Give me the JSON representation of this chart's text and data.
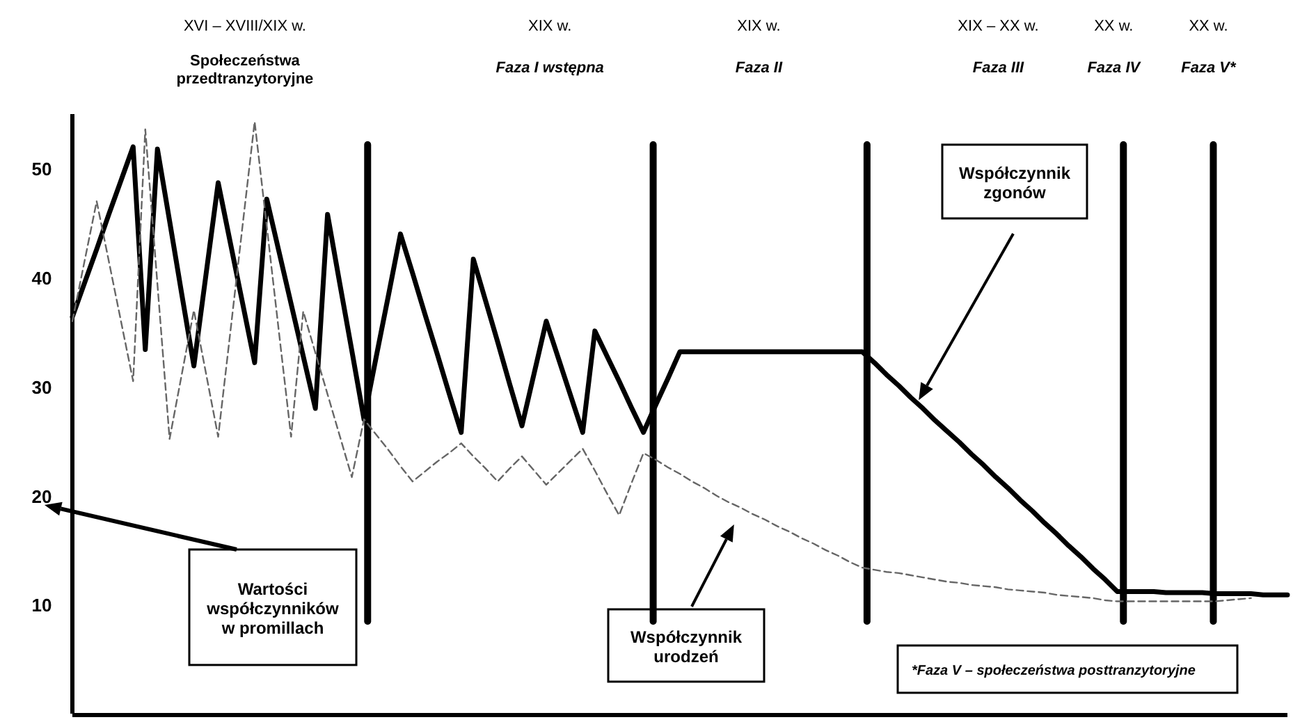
{
  "chart_data": {
    "type": "line",
    "ylim": [
      0,
      55
    ],
    "yticks": [
      10,
      20,
      30,
      40,
      50
    ],
    "tick_labels": "y",
    "marker": "none",
    "categories": [
      null,
      null,
      null,
      null,
      null,
      null,
      null,
      null,
      null,
      null,
      null,
      null,
      null,
      null,
      null,
      null,
      null,
      null,
      null,
      null,
      null,
      null,
      null,
      null,
      null,
      null,
      null,
      null,
      null,
      null,
      null,
      null,
      null,
      null,
      null,
      null,
      null,
      null,
      null,
      null,
      null,
      null,
      null,
      null,
      null,
      null,
      null,
      null,
      null,
      null,
      null,
      null,
      null,
      null,
      null,
      null,
      null,
      null,
      null,
      null,
      null,
      null,
      null,
      null,
      null,
      null,
      null,
      null,
      null,
      null,
      null,
      null,
      null,
      null,
      null,
      null,
      null,
      null,
      null,
      null,
      null,
      null,
      null,
      null,
      null,
      null,
      null,
      null,
      null,
      null,
      null,
      null,
      null,
      null,
      null,
      null,
      null,
      null,
      null,
      null,
      null
    ],
    "series": [
      {
        "color": "#000000",
        "line_style": "solid",
        "values": [
          36.4,
          39.5,
          42.6,
          45.8,
          48.9,
          52,
          33.4,
          51.8,
          45.2,
          38.5,
          31.9,
          40.3,
          48.7,
          43.2,
          37.7,
          32.2,
          47.2,
          42.4,
          37.6,
          32.8,
          28,
          45.8,
          39.5,
          33.3,
          27,
          32.7,
          38.3,
          44,
          40.4,
          36.7,
          33.1,
          29.4,
          25.8,
          41.7,
          37.9,
          34.1,
          30.2,
          26.4,
          31.2,
          36,
          32.6,
          29.2,
          25.8,
          35.1,
          32.8,
          30.5,
          28.1,
          25.8,
          28.3,
          30.7,
          33.2,
          33.2,
          33.2,
          33.2,
          33.2,
          33.2,
          33.2,
          33.2,
          33.2,
          33.2,
          33.2,
          33.2,
          33.2,
          33.2,
          33.2,
          33.2,
          32.2,
          31.1,
          30.1,
          29,
          28,
          26.9,
          25.9,
          24.9,
          23.8,
          22.8,
          21.7,
          20.7,
          19.6,
          18.6,
          17.5,
          16.5,
          15.4,
          14.4,
          13.3,
          12.3,
          11.2,
          11.2,
          11.2,
          11.2,
          11.1,
          11.1,
          11.1,
          11.1,
          11,
          11,
          11,
          11,
          10.9,
          10.9,
          10.9
        ]
      },
      {
        "color": "#666666",
        "line_style": "dashed",
        "values": [
          36,
          41.5,
          47,
          41.5,
          36,
          30.5,
          53.6,
          39.4,
          25.2,
          31.1,
          37,
          31.2,
          25.4,
          35,
          44.7,
          54.3,
          44.7,
          35,
          25.4,
          36.9,
          33.1,
          29.3,
          25.5,
          21.7,
          27,
          25.6,
          24.2,
          22.7,
          21.3,
          22.2,
          23.1,
          23.9,
          24.8,
          23.6,
          22.5,
          21.3,
          22.5,
          23.6,
          22.3,
          21,
          22.1,
          23.2,
          24.3,
          22.3,
          20.2,
          18.2,
          21.1,
          23.9,
          23.3,
          22.6,
          22,
          21.3,
          20.7,
          20,
          19.4,
          18.9,
          18.3,
          17.8,
          17.2,
          16.7,
          16.1,
          15.6,
          15,
          14.5,
          13.9,
          13.4,
          13.2,
          13,
          12.9,
          12.7,
          12.5,
          12.3,
          12.1,
          12,
          11.8,
          11.7,
          11.6,
          11.4,
          11.3,
          11.2,
          11.1,
          10.9,
          10.8,
          10.7,
          10.6,
          10.4,
          10.3,
          10.3,
          10.3,
          10.3,
          10.3,
          10.3,
          10.3,
          10.3,
          10.3,
          10.4,
          10.5,
          10.6,
          null,
          null,
          null
        ]
      }
    ],
    "annotations": [
      "XVI – XVIII/XIX w.",
      "XIX w.",
      "XIX w.",
      "XIX – XX w.",
      "XX w.",
      "XX w.",
      "Społeczeństwa\nprzedtranzytoryjne",
      "Faza I wstępna",
      "Faza II",
      "Faza III",
      "Faza IV",
      "Faza V*",
      "Wartości\nwspółczynników\nw promillach",
      "Współczynnik\nzgonów",
      "Współczynnik\nurodzeń",
      "*Faza V – społeczeństwa posttranzytoryjne"
    ]
  }
}
